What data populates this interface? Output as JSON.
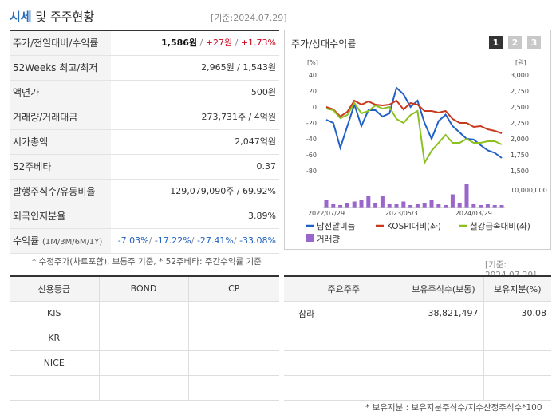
{
  "header": {
    "title_part1": "시세",
    "title_part2": " 및 주주현황",
    "date": "[기준:2024.07.29]"
  },
  "quote": {
    "rows": [
      {
        "label": "주가/전일대비/수익률",
        "v1": "1,586원",
        "v2": "+27원",
        "v3": "+1.73%"
      },
      {
        "label": "52Weeks 최고/최저",
        "value": "2,965원 / 1,543원"
      },
      {
        "label": "액면가",
        "value": "500원"
      },
      {
        "label": "거래량/거래대금",
        "value": "273,731주 / 4억원"
      },
      {
        "label": "시가총액",
        "value": "2,047억원"
      },
      {
        "label": "52주베타",
        "value": "0.37"
      },
      {
        "label": "발행주식수/유동비율",
        "value": "129,079,090주 / 69.92%"
      },
      {
        "label": "외국인지분율",
        "value": "3.89%"
      },
      {
        "label": "수익률",
        "label_small": "(1M/3M/6M/1Y)",
        "r1": "-7.03%",
        "r2": "-17.22%",
        "r3": "-27.41%",
        "r4": "-33.08%"
      }
    ],
    "note": "* 수정주가(차트포함), 보통주 기준, * 52주베타: 주간수익률 기준"
  },
  "chart_panel": {
    "title": "주가/상대수익률",
    "pages": [
      "1",
      "2",
      "3"
    ],
    "date": "[기준: 2024.07.29]"
  },
  "chart_data": {
    "type": "line",
    "left_axis_unit": "[%]",
    "right_axis_unit": "[원]",
    "volume_axis_label": "10,000,000",
    "left_ticks": [
      "40",
      "20",
      "0",
      "-20",
      "-40",
      "-60",
      "-80"
    ],
    "right_ticks": [
      "3,000",
      "2,750",
      "2,500",
      "2,250",
      "2,000",
      "1,750",
      "1,500"
    ],
    "ylim_left": [
      -80,
      40
    ],
    "ylim_right": [
      1500,
      3000
    ],
    "x_labels": [
      "2022/07/29",
      "2023/05/31",
      "2024/03/29"
    ],
    "legend": [
      "남선알미늄",
      "KOSPI대비(좌)",
      "철강금속대비(좌)",
      "거래량"
    ],
    "colors": {
      "stock": "#2060c8",
      "kospi": "#c83a1e",
      "steel": "#8cc020",
      "volume": "#9966cc"
    },
    "series": [
      {
        "name": "남선알미늄",
        "axis": "right",
        "values": [
          2300,
          2250,
          1860,
          2200,
          2540,
          2200,
          2450,
          2450,
          2350,
          2400,
          2800,
          2700,
          2500,
          2600,
          2250,
          2000,
          2280,
          2380,
          2200,
          2100,
          2000,
          1990,
          1900,
          1820,
          1780,
          1700
        ]
      },
      {
        "name": "KOSPI대비(좌)",
        "axis": "left",
        "values": [
          0,
          -3,
          -12,
          -6,
          8,
          3,
          7,
          3,
          2,
          3,
          8,
          -3,
          5,
          3,
          -5,
          -5,
          -7,
          -5,
          -15,
          -20,
          -20,
          -25,
          -24,
          -28,
          -30,
          -33
        ]
      },
      {
        "name": "철강금속대비(좌)",
        "axis": "left",
        "values": [
          -2,
          -4,
          -14,
          -10,
          5,
          -8,
          -5,
          2,
          -2,
          0,
          -15,
          -20,
          -10,
          -5,
          -70,
          -55,
          -45,
          -35,
          -45,
          -45,
          -40,
          -45,
          -45,
          -43,
          -43,
          -47
        ]
      }
    ],
    "volume": [
      0.3,
      0.15,
      0.1,
      0.2,
      0.25,
      0.3,
      0.5,
      0.2,
      0.5,
      0.15,
      0.15,
      0.25,
      0.1,
      0.15,
      0.2,
      0.3,
      0.15,
      0.1,
      0.55,
      0.2,
      1.0,
      0.15,
      0.1,
      0.15,
      0.1,
      0.1
    ]
  },
  "credit": {
    "headers": [
      "신용등급",
      "BOND",
      "CP"
    ],
    "rows": [
      [
        "KIS",
        "",
        ""
      ],
      [
        "KR",
        "",
        ""
      ],
      [
        "NICE",
        "",
        ""
      ],
      [
        "",
        "",
        ""
      ]
    ]
  },
  "holders": {
    "headers": [
      "주요주주",
      "보유주식수(보통)",
      "보유지분(%)"
    ],
    "rows": [
      [
        "삼라",
        "38,821,497",
        "30.08"
      ],
      [
        "",
        "",
        ""
      ],
      [
        "",
        "",
        ""
      ],
      [
        "",
        "",
        ""
      ]
    ],
    "note": "* 보유지분 : 보유지분주식수/지수산정주식수*100"
  }
}
